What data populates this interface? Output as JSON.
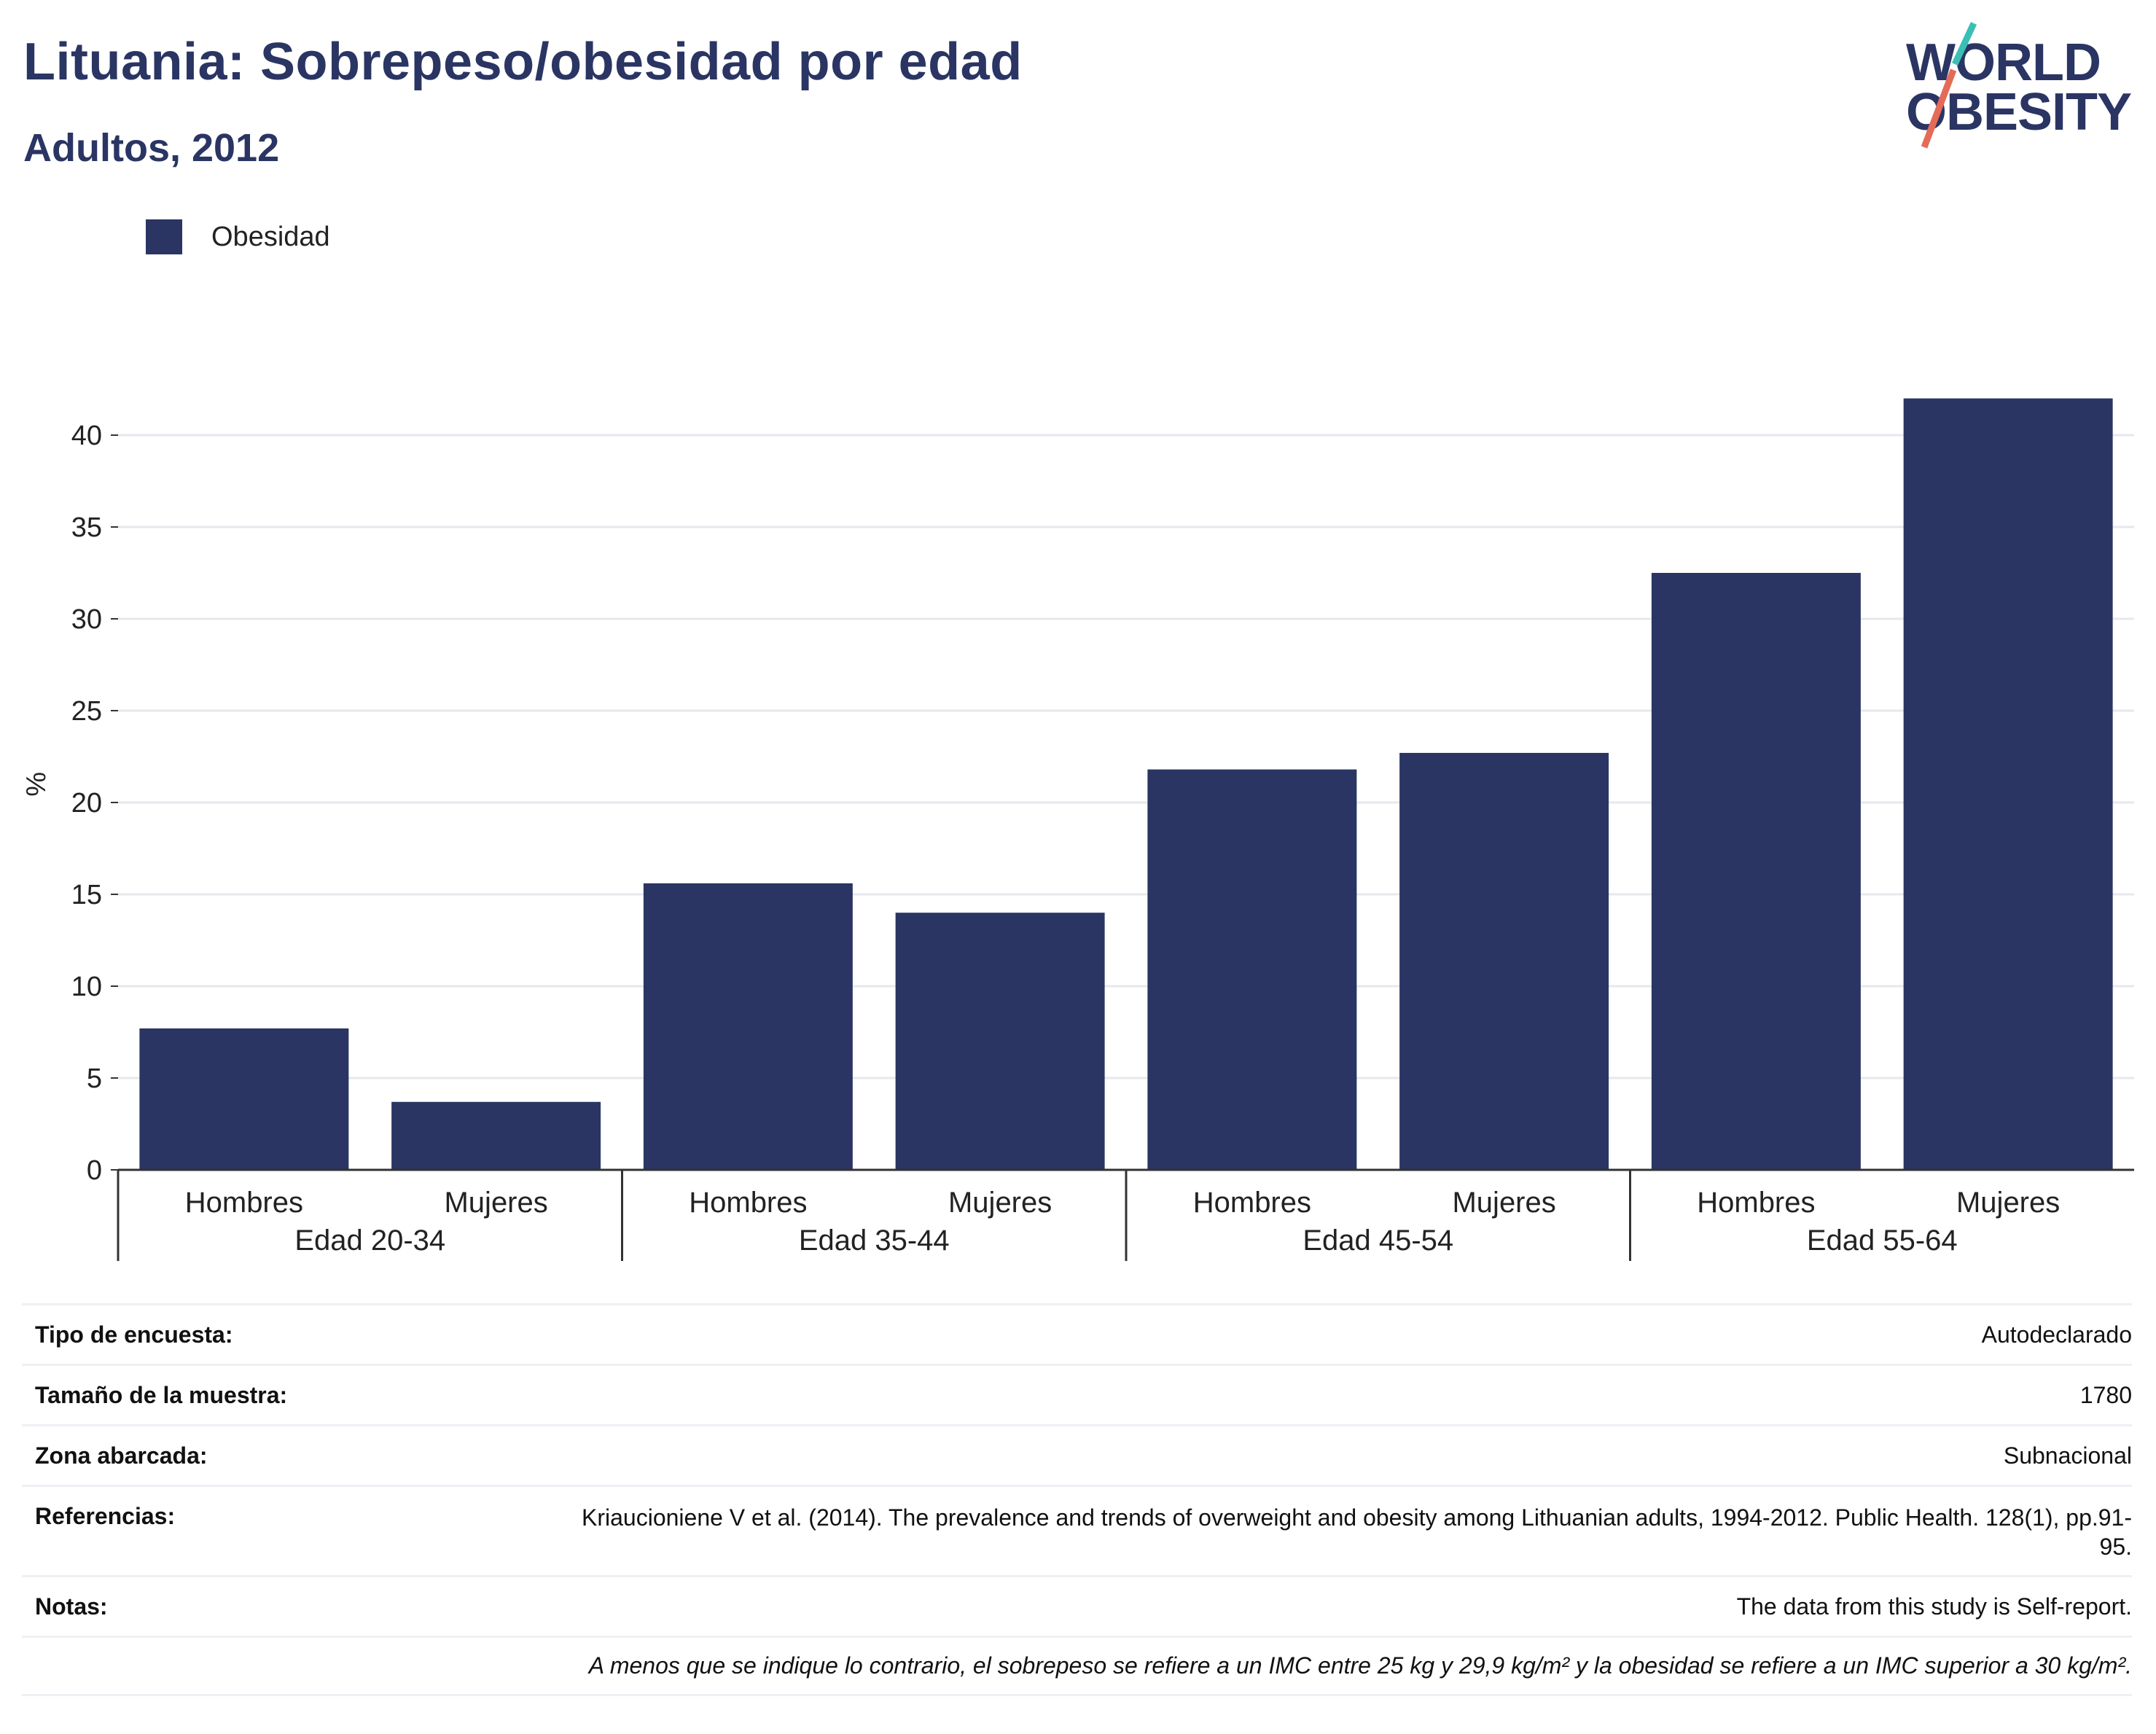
{
  "header": {
    "title": "Lituania: Sobrepeso/obesidad por edad",
    "subtitle": "Adultos, 2012"
  },
  "logo": {
    "line1": "WORLD",
    "line2": "OBESITY",
    "colors": {
      "text": "#2a3563",
      "slash_top": "#3bbfb5",
      "slash_bottom": "#e36b58"
    }
  },
  "colors": {
    "bar": "#2a3563",
    "grid": "#e6e8ee",
    "axis": "#333333"
  },
  "legend": {
    "label": "Obesidad"
  },
  "chart_data": {
    "type": "bar",
    "title": "Lituania: Sobrepeso/obesidad por edad",
    "subtitle": "Adultos, 2012",
    "ylabel": "%",
    "xlabel": "",
    "ylim": [
      0,
      43
    ],
    "yticks": [
      0,
      5,
      10,
      15,
      20,
      25,
      30,
      35,
      40
    ],
    "grid": true,
    "legend_position": "top-left",
    "groups": [
      "Edad 20-34",
      "Edad 35-44",
      "Edad 45-54",
      "Edad 55-64"
    ],
    "categories": [
      "Hombres",
      "Mujeres",
      "Hombres",
      "Mujeres",
      "Hombres",
      "Mujeres",
      "Hombres",
      "Mujeres"
    ],
    "series": [
      {
        "name": "Obesidad",
        "values": [
          7.7,
          3.7,
          15.6,
          14.0,
          21.8,
          22.7,
          32.5,
          42.0
        ]
      }
    ]
  },
  "info": {
    "survey_type_label": "Tipo de encuesta:",
    "survey_type_value": "Autodeclarado",
    "sample_size_label": "Tamaño de la muestra:",
    "sample_size_value": "1780",
    "area_label": "Zona abarcada:",
    "area_value": "Subnacional",
    "references_label": "Referencias:",
    "references_value": "Kriaucioniene V et al. (2014). The prevalence and trends of overweight and obesity among Lithuanian adults, 1994-2012. Public Health. 128(1), pp.91-95.",
    "notes_label": "Notas:",
    "notes_value": "The data from this study is Self-report.",
    "footnote": "A menos que se indique lo contrario, el sobrepeso se refiere a un IMC entre 25 kg y 29,9 kg/m² y la obesidad se refiere a un IMC superior a 30 kg/m²."
  }
}
